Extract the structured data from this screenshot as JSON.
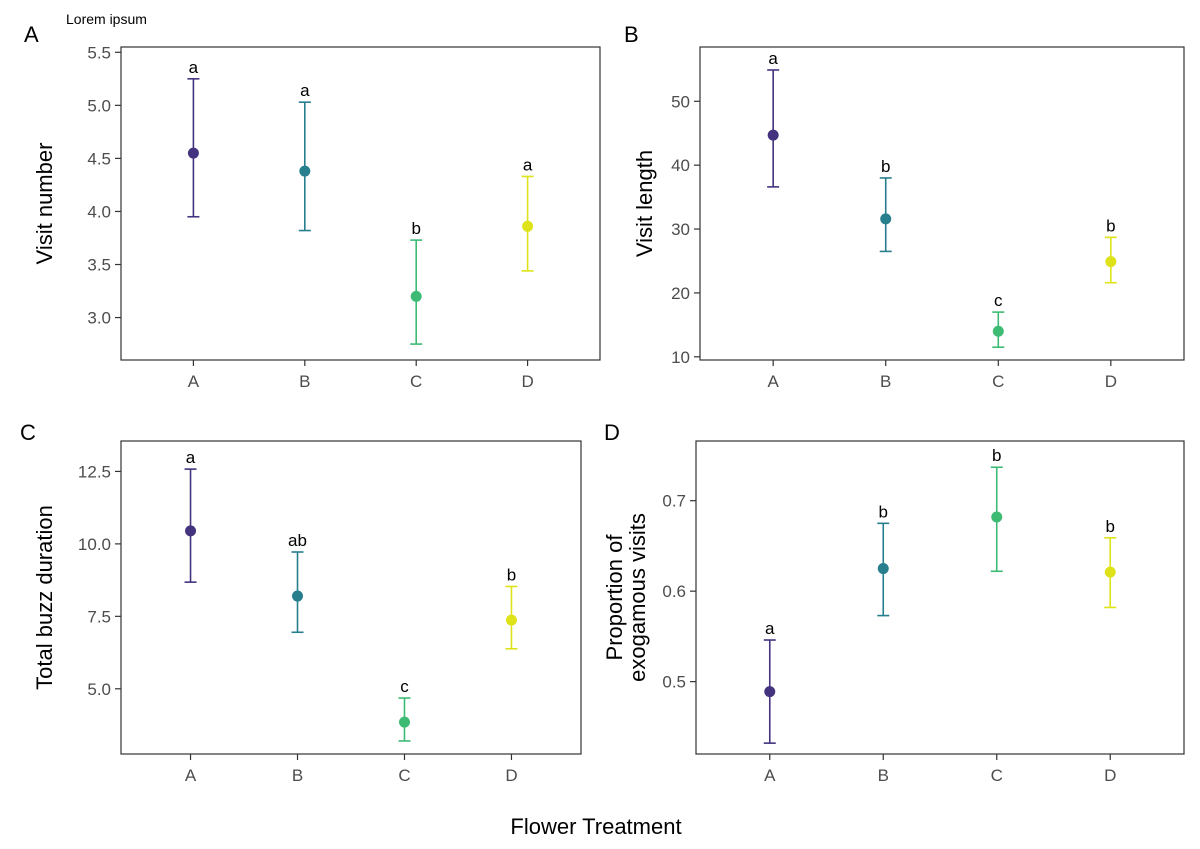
{
  "caption": "Lorem ipsum",
  "x_title": "Flower Treatment",
  "colors": {
    "A": "#44337e",
    "B": "#277f8e",
    "C": "#3dbb74",
    "D": "#dde318"
  },
  "chart_data": [
    {
      "type": "scatter",
      "panel": "A",
      "ylabel": [
        "Visit number"
      ],
      "categories": [
        "A",
        "B",
        "C",
        "D"
      ],
      "values": [
        4.55,
        4.38,
        3.2,
        3.86
      ],
      "lower": [
        3.95,
        3.82,
        2.75,
        3.44
      ],
      "upper": [
        5.25,
        5.03,
        3.73,
        4.33
      ],
      "letters": [
        "a",
        "a",
        "b",
        "a"
      ],
      "ylim": [
        2.6,
        5.55
      ],
      "yticks": [
        3.0,
        3.5,
        4.0,
        4.5,
        5.0,
        5.5
      ],
      "ytick_labels": [
        "3.0",
        "3.5",
        "4.0",
        "4.5",
        "5.0",
        "5.5"
      ]
    },
    {
      "type": "scatter",
      "panel": "B",
      "ylabel": [
        "Visit length"
      ],
      "categories": [
        "A",
        "B",
        "C",
        "D"
      ],
      "values": [
        44.7,
        31.6,
        14.0,
        24.9
      ],
      "lower": [
        36.6,
        26.5,
        11.5,
        21.6
      ],
      "upper": [
        54.9,
        38.0,
        17.0,
        28.7
      ],
      "letters": [
        "a",
        "b",
        "c",
        "b"
      ],
      "ylim": [
        9.5,
        58.5
      ],
      "yticks": [
        10,
        20,
        30,
        40,
        50
      ],
      "ytick_labels": [
        "10",
        "20",
        "30",
        "40",
        "50"
      ]
    },
    {
      "type": "scatter",
      "panel": "C",
      "ylabel": [
        "Total buzz duration"
      ],
      "categories": [
        "A",
        "B",
        "C",
        "D"
      ],
      "values": [
        10.45,
        8.2,
        3.85,
        7.37
      ],
      "lower": [
        8.68,
        6.95,
        3.2,
        6.38
      ],
      "upper": [
        12.58,
        9.72,
        4.68,
        8.53
      ],
      "letters": [
        "a",
        "ab",
        "c",
        "b"
      ],
      "ylim": [
        2.75,
        13.55
      ],
      "yticks": [
        5.0,
        7.5,
        10.0,
        12.5
      ],
      "ytick_labels": [
        "5.0",
        "7.5",
        "10.0",
        "12.5"
      ]
    },
    {
      "type": "scatter",
      "panel": "D",
      "ylabel": [
        "Proportion of",
        "exogamous visits"
      ],
      "categories": [
        "A",
        "B",
        "C",
        "D"
      ],
      "values": [
        0.489,
        0.625,
        0.682,
        0.621
      ],
      "lower": [
        0.432,
        0.573,
        0.622,
        0.582
      ],
      "upper": [
        0.546,
        0.675,
        0.737,
        0.659
      ],
      "letters": [
        "a",
        "b",
        "b",
        "b"
      ],
      "ylim": [
        0.42,
        0.766
      ],
      "yticks": [
        0.5,
        0.6,
        0.7
      ],
      "ytick_labels": [
        "0.5",
        "0.6",
        "0.7"
      ]
    }
  ]
}
